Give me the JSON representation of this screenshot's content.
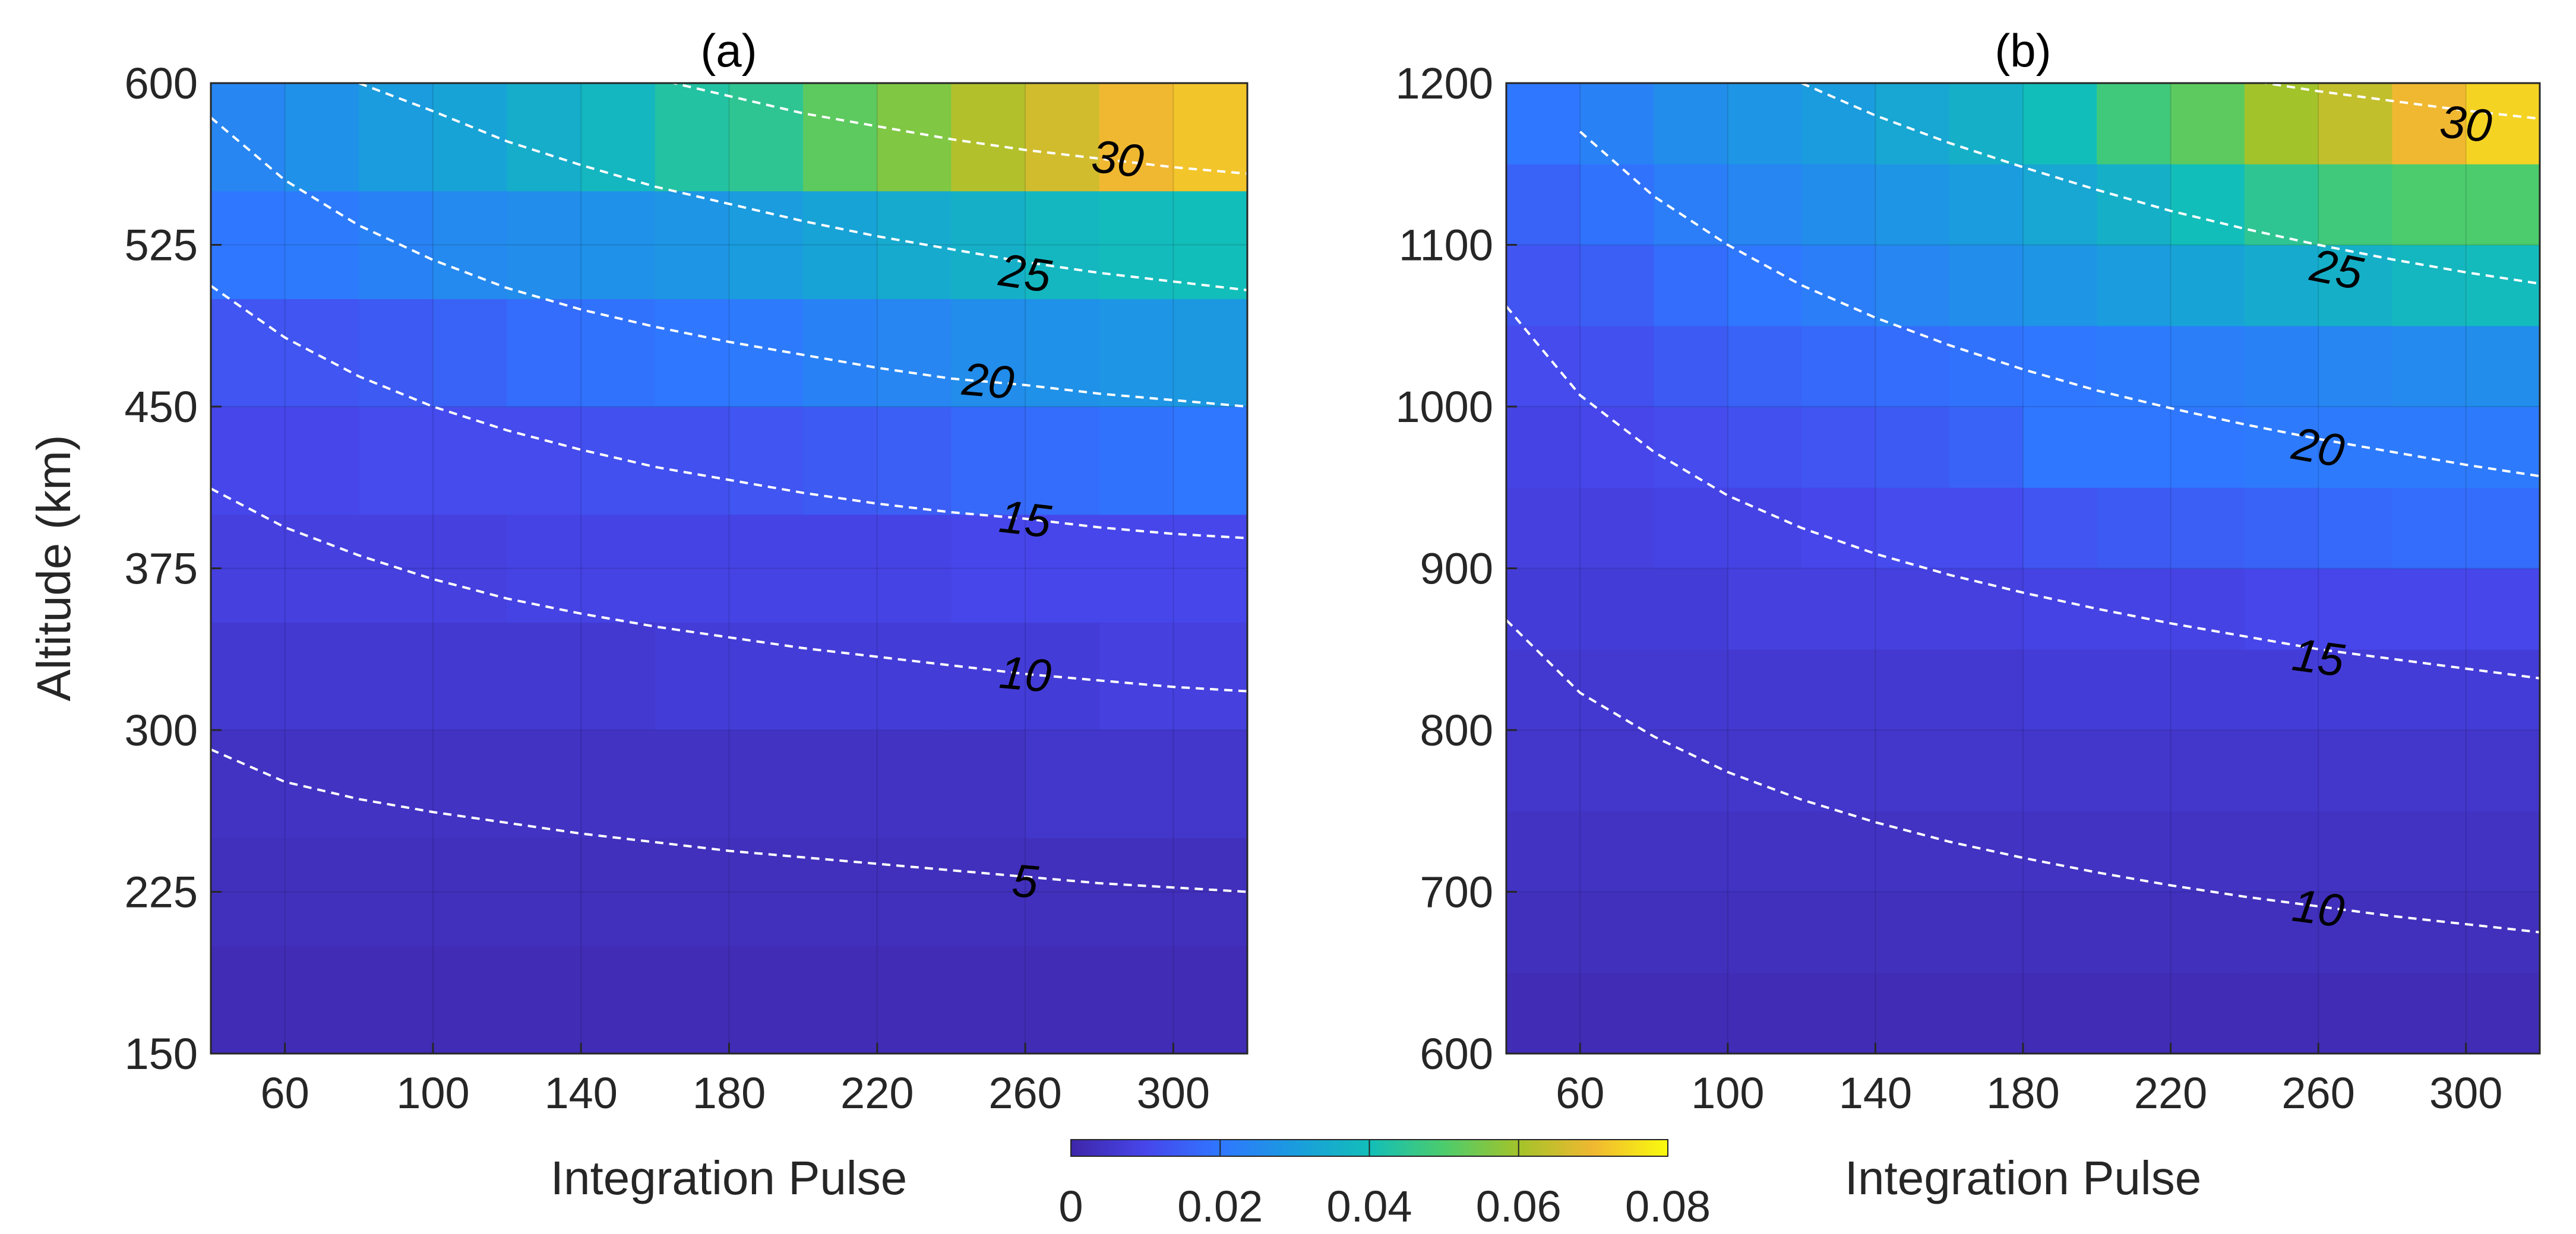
{
  "chart_data": [
    {
      "panel": "(a)",
      "type": "heatmap",
      "title": "(a)",
      "xlabel": "Integration Pulse",
      "ylabel": "Altitude (km)",
      "xlim": [
        40,
        320
      ],
      "ylim": [
        150,
        600
      ],
      "x_ticks": [
        "60",
        "100",
        "140",
        "180",
        "220",
        "260",
        "300"
      ],
      "y_ticks": [
        "150",
        "225",
        "300",
        "375",
        "450",
        "525",
        "600"
      ],
      "x_cells": [
        50,
        70,
        90,
        110,
        130,
        150,
        170,
        190,
        210,
        230,
        250,
        270,
        290,
        310
      ],
      "y_cells": [
        175,
        225,
        275,
        325,
        375,
        425,
        475,
        525,
        575
      ],
      "z": [
        [
          0.002,
          0.002,
          0.002,
          0.002,
          0.002,
          0.002,
          0.002,
          0.002,
          0.002,
          0.002,
          0.002,
          0.002,
          0.002,
          0.002
        ],
        [
          0.003,
          0.003,
          0.003,
          0.003,
          0.003,
          0.003,
          0.003,
          0.003,
          0.003,
          0.003,
          0.003,
          0.003,
          0.003,
          0.003
        ],
        [
          0.004,
          0.004,
          0.004,
          0.004,
          0.004,
          0.004,
          0.004,
          0.004,
          0.004,
          0.004,
          0.004,
          0.005,
          0.005,
          0.005
        ],
        [
          0.006,
          0.006,
          0.006,
          0.006,
          0.006,
          0.006,
          0.007,
          0.007,
          0.007,
          0.007,
          0.007,
          0.007,
          0.008,
          0.008
        ],
        [
          0.008,
          0.008,
          0.008,
          0.008,
          0.009,
          0.009,
          0.009,
          0.009,
          0.009,
          0.009,
          0.01,
          0.01,
          0.01,
          0.01
        ],
        [
          0.01,
          0.01,
          0.011,
          0.011,
          0.011,
          0.012,
          0.012,
          0.013,
          0.014,
          0.015,
          0.017,
          0.018,
          0.019,
          0.02
        ],
        [
          0.013,
          0.013,
          0.014,
          0.016,
          0.018,
          0.019,
          0.02,
          0.021,
          0.023,
          0.024,
          0.026,
          0.027,
          0.028,
          0.029
        ],
        [
          0.02,
          0.021,
          0.023,
          0.025,
          0.026,
          0.027,
          0.028,
          0.03,
          0.032,
          0.034,
          0.036,
          0.038,
          0.039,
          0.04
        ],
        [
          0.024,
          0.027,
          0.03,
          0.032,
          0.035,
          0.038,
          0.043,
          0.045,
          0.052,
          0.056,
          0.062,
          0.066,
          0.07,
          0.072
        ]
      ],
      "contours": [
        {
          "label": "5",
          "label_at": [
            260,
            230
          ],
          "points": [
            [
              40,
              291
            ],
            [
              60,
              276
            ],
            [
              80,
              268
            ],
            [
              100,
              262
            ],
            [
              120,
              257
            ],
            [
              140,
              252
            ],
            [
              160,
              248
            ],
            [
              180,
              244
            ],
            [
              200,
              241
            ],
            [
              220,
              238
            ],
            [
              240,
              235
            ],
            [
              260,
              232
            ],
            [
              280,
              229
            ],
            [
              300,
              227
            ],
            [
              320,
              225
            ]
          ]
        },
        {
          "label": "10",
          "label_at": [
            260,
            326
          ],
          "points": [
            [
              40,
              412
            ],
            [
              60,
              394
            ],
            [
              80,
              381
            ],
            [
              100,
              370
            ],
            [
              120,
              361
            ],
            [
              140,
              354
            ],
            [
              160,
              348
            ],
            [
              180,
              343
            ],
            [
              200,
              338
            ],
            [
              220,
              334
            ],
            [
              240,
              330
            ],
            [
              260,
              326
            ],
            [
              280,
              323
            ],
            [
              300,
              320
            ],
            [
              320,
              318
            ]
          ]
        },
        {
          "label": "15",
          "label_at": [
            260,
            398
          ],
          "points": [
            [
              40,
              506
            ],
            [
              60,
              482
            ],
            [
              80,
              464
            ],
            [
              100,
              450
            ],
            [
              120,
              439
            ],
            [
              140,
              430
            ],
            [
              160,
              422
            ],
            [
              180,
              416
            ],
            [
              200,
              410
            ],
            [
              220,
              405
            ],
            [
              240,
              401
            ],
            [
              260,
              398
            ],
            [
              280,
              394
            ],
            [
              300,
              391
            ],
            [
              320,
              389
            ]
          ]
        },
        {
          "label": "20",
          "label_at": [
            250,
            462
          ],
          "points": [
            [
              40,
              584
            ],
            [
              60,
              555
            ],
            [
              80,
              534
            ],
            [
              100,
              518
            ],
            [
              120,
              505
            ],
            [
              140,
              495
            ],
            [
              160,
              487
            ],
            [
              180,
              480
            ],
            [
              200,
              474
            ],
            [
              220,
              468
            ],
            [
              240,
              463
            ],
            [
              260,
              460
            ],
            [
              280,
              456
            ],
            [
              300,
              453
            ],
            [
              320,
              450
            ]
          ]
        },
        {
          "label": "25",
          "label_at": [
            260,
            512
          ],
          "points": [
            [
              80,
              600
            ],
            [
              100,
              587
            ],
            [
              120,
              573
            ],
            [
              140,
              562
            ],
            [
              160,
              552
            ],
            [
              180,
              544
            ],
            [
              200,
              536
            ],
            [
              220,
              529
            ],
            [
              240,
              523
            ],
            [
              260,
              517
            ],
            [
              280,
              512
            ],
            [
              300,
              508
            ],
            [
              320,
              504
            ]
          ]
        },
        {
          "label": "30",
          "label_at": [
            285,
            565
          ],
          "points": [
            [
              160,
              602
            ],
            [
              180,
              594
            ],
            [
              200,
              586
            ],
            [
              220,
              580
            ],
            [
              240,
              574
            ],
            [
              260,
              569
            ],
            [
              280,
              565
            ],
            [
              300,
              561
            ],
            [
              320,
              558
            ]
          ]
        }
      ]
    },
    {
      "panel": "(b)",
      "type": "heatmap",
      "title": "(b)",
      "xlabel": "Integration Pulse",
      "ylabel": "",
      "xlim": [
        40,
        320
      ],
      "ylim": [
        600,
        1200
      ],
      "x_ticks": [
        "60",
        "100",
        "140",
        "180",
        "220",
        "260",
        "300"
      ],
      "y_ticks": [
        "600",
        "700",
        "800",
        "900",
        "1000",
        "1100",
        "1200"
      ],
      "x_cells": [
        50,
        70,
        90,
        110,
        130,
        150,
        170,
        190,
        210,
        230,
        250,
        270,
        290,
        310
      ],
      "y_cells": [
        625,
        675,
        725,
        775,
        825,
        875,
        925,
        975,
        1025,
        1075,
        1125,
        1175
      ],
      "z": [
        [
          0.002,
          0.002,
          0.002,
          0.002,
          0.002,
          0.002,
          0.002,
          0.002,
          0.002,
          0.002,
          0.002,
          0.002,
          0.002,
          0.002
        ],
        [
          0.003,
          0.003,
          0.003,
          0.003,
          0.003,
          0.003,
          0.003,
          0.003,
          0.003,
          0.003,
          0.003,
          0.003,
          0.003,
          0.003
        ],
        [
          0.004,
          0.004,
          0.004,
          0.004,
          0.004,
          0.004,
          0.004,
          0.004,
          0.004,
          0.004,
          0.004,
          0.004,
          0.004,
          0.004
        ],
        [
          0.005,
          0.005,
          0.005,
          0.005,
          0.005,
          0.005,
          0.005,
          0.005,
          0.005,
          0.005,
          0.005,
          0.005,
          0.005,
          0.005
        ],
        [
          0.006,
          0.006,
          0.006,
          0.006,
          0.006,
          0.006,
          0.006,
          0.007,
          0.007,
          0.007,
          0.007,
          0.007,
          0.007,
          0.007
        ],
        [
          0.007,
          0.007,
          0.007,
          0.008,
          0.008,
          0.008,
          0.008,
          0.009,
          0.009,
          0.009,
          0.01,
          0.01,
          0.01,
          0.01
        ],
        [
          0.008,
          0.008,
          0.009,
          0.009,
          0.01,
          0.011,
          0.011,
          0.013,
          0.014,
          0.015,
          0.016,
          0.017,
          0.018,
          0.018
        ],
        [
          0.009,
          0.01,
          0.011,
          0.012,
          0.013,
          0.014,
          0.016,
          0.02,
          0.02,
          0.02,
          0.021,
          0.021,
          0.021,
          0.021
        ],
        [
          0.011,
          0.012,
          0.014,
          0.016,
          0.017,
          0.018,
          0.019,
          0.02,
          0.021,
          0.022,
          0.023,
          0.024,
          0.025,
          0.026
        ],
        [
          0.013,
          0.015,
          0.018,
          0.02,
          0.022,
          0.024,
          0.026,
          0.028,
          0.03,
          0.032,
          0.034,
          0.036,
          0.038,
          0.039
        ],
        [
          0.016,
          0.019,
          0.022,
          0.024,
          0.026,
          0.028,
          0.03,
          0.033,
          0.036,
          0.04,
          0.045,
          0.048,
          0.05,
          0.05
        ],
        [
          0.02,
          0.023,
          0.026,
          0.028,
          0.03,
          0.033,
          0.036,
          0.04,
          0.048,
          0.052,
          0.06,
          0.064,
          0.07,
          0.074
        ]
      ],
      "contours": [
        {
          "label": "10",
          "label_at": [
            260,
            690
          ],
          "points": [
            [
              40,
              868
            ],
            [
              60,
              823
            ],
            [
              80,
              796
            ],
            [
              100,
              774
            ],
            [
              120,
              757
            ],
            [
              140,
              743
            ],
            [
              160,
              731
            ],
            [
              180,
              721
            ],
            [
              200,
              712
            ],
            [
              220,
              704
            ],
            [
              240,
              697
            ],
            [
              260,
              691
            ],
            [
              280,
              685
            ],
            [
              300,
              680
            ],
            [
              320,
              675
            ]
          ]
        },
        {
          "label": "15",
          "label_at": [
            260,
            845
          ],
          "points": [
            [
              40,
              1062
            ],
            [
              60,
              1007
            ],
            [
              80,
              972
            ],
            [
              100,
              945
            ],
            [
              120,
              925
            ],
            [
              140,
              909
            ],
            [
              160,
              896
            ],
            [
              180,
              885
            ],
            [
              200,
              875
            ],
            [
              220,
              866
            ],
            [
              240,
              858
            ],
            [
              260,
              850
            ],
            [
              280,
              844
            ],
            [
              300,
              838
            ],
            [
              320,
              832
            ]
          ]
        },
        {
          "label": "20",
          "label_at": [
            260,
            975
          ],
          "points": [
            [
              60,
              1170
            ],
            [
              80,
              1130
            ],
            [
              100,
              1100
            ],
            [
              120,
              1075
            ],
            [
              140,
              1055
            ],
            [
              160,
              1038
            ],
            [
              180,
              1023
            ],
            [
              200,
              1010
            ],
            [
              220,
              999
            ],
            [
              240,
              989
            ],
            [
              260,
              980
            ],
            [
              280,
              972
            ],
            [
              300,
              964
            ],
            [
              320,
              957
            ]
          ]
        },
        {
          "label": "25",
          "label_at": [
            265,
            1085
          ],
          "points": [
            [
              120,
              1200
            ],
            [
              140,
              1180
            ],
            [
              160,
              1163
            ],
            [
              180,
              1148
            ],
            [
              200,
              1134
            ],
            [
              220,
              1121
            ],
            [
              240,
              1110
            ],
            [
              260,
              1100
            ],
            [
              280,
              1091
            ],
            [
              300,
              1083
            ],
            [
              320,
              1076
            ]
          ]
        },
        {
          "label": "30",
          "label_at": [
            300,
            1175
          ],
          "points": [
            [
              240,
              1202
            ],
            [
              260,
              1195
            ],
            [
              280,
              1189
            ],
            [
              300,
              1183
            ],
            [
              320,
              1178
            ]
          ]
        }
      ]
    }
  ],
  "colorbar": {
    "range": [
      0,
      0.08
    ],
    "tick_labels": [
      "0",
      "0.02",
      "0.04",
      "0.06",
      "0.08"
    ],
    "tick_values": [
      0,
      0.02,
      0.04,
      0.06,
      0.08
    ]
  }
}
